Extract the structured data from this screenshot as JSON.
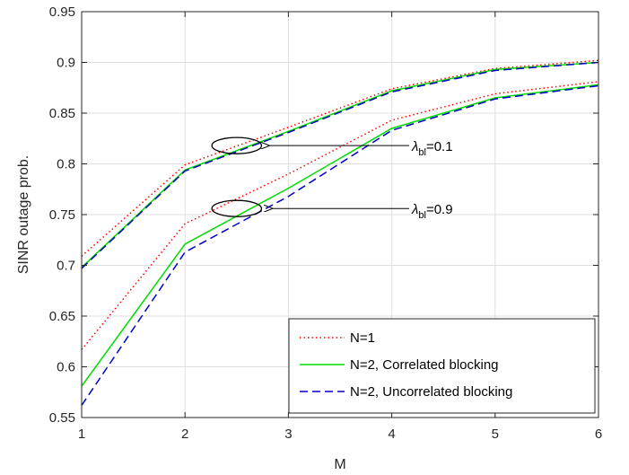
{
  "chart_data": {
    "type": "line",
    "xlabel": "M",
    "ylabel": "SINR outage prob.",
    "xlim": [
      1,
      6
    ],
    "ylim": [
      0.55,
      0.95
    ],
    "xticks": [
      1,
      2,
      3,
      4,
      5,
      6
    ],
    "xtick_labels": [
      "1",
      "2",
      "3",
      "4",
      "5",
      "6"
    ],
    "yticks": [
      0.55,
      0.6,
      0.65,
      0.7,
      0.75,
      0.8,
      0.85,
      0.9,
      0.95
    ],
    "ytick_labels": [
      "0.55",
      "0.6",
      "0.65",
      "0.7",
      "0.75",
      "0.8",
      "0.85",
      "0.9",
      "0.95"
    ],
    "grid": true,
    "legend_position": "bottom-right",
    "x": [
      1,
      2,
      3,
      4,
      5,
      6
    ],
    "series": [
      {
        "name": "N=1",
        "group": "lambda_bl=0.1",
        "color": "#ff0000",
        "dash": "dotted",
        "values": [
          0.709,
          0.799,
          0.836,
          0.874,
          0.894,
          0.902
        ]
      },
      {
        "name": "N=2, Correlated blocking",
        "group": "lambda_bl=0.1",
        "color": "#00dd00",
        "dash": "solid",
        "values": [
          0.698,
          0.794,
          0.832,
          0.872,
          0.893,
          0.9
        ]
      },
      {
        "name": "N=2, Uncorrelated blocking",
        "group": "lambda_bl=0.1",
        "color": "#0000cc",
        "dash": "dashed",
        "values": [
          0.697,
          0.793,
          0.831,
          0.871,
          0.892,
          0.9
        ]
      },
      {
        "name": "N=1",
        "group": "lambda_bl=0.9",
        "color": "#ff0000",
        "dash": "dotted",
        "values": [
          0.617,
          0.741,
          0.79,
          0.843,
          0.869,
          0.881
        ]
      },
      {
        "name": "N=2, Correlated blocking",
        "group": "lambda_bl=0.9",
        "color": "#00dd00",
        "dash": "solid",
        "values": [
          0.581,
          0.721,
          0.776,
          0.835,
          0.865,
          0.878
        ]
      },
      {
        "name": "N=2, Uncorrelated blocking",
        "group": "lambda_bl=0.9",
        "color": "#0000cc",
        "dash": "dashed",
        "values": [
          0.562,
          0.713,
          0.768,
          0.833,
          0.864,
          0.877
        ]
      }
    ],
    "legend": [
      {
        "label": "N=1",
        "color": "#ff0000",
        "dash": "dotted"
      },
      {
        "label": "N=2, Correlated blocking",
        "color": "#00dd00",
        "dash": "solid"
      },
      {
        "label": "N=2, Uncorrelated blocking",
        "color": "#0000cc",
        "dash": "dashed"
      }
    ],
    "annotations": [
      {
        "symbol": "λ",
        "sub": "bl",
        "rest": "=0.1",
        "ellipse_center": [
          2.5,
          0.818
        ],
        "ellipse_rx": 0.24,
        "ellipse_ry": 0.008,
        "arrow_to": [
          2.81,
          0.818
        ]
      },
      {
        "symbol": "λ",
        "sub": "bl",
        "rest": "=0.9",
        "ellipse_center": [
          2.5,
          0.756
        ],
        "ellipse_rx": 0.24,
        "ellipse_ry": 0.008,
        "arrow_to": [
          2.84,
          0.756
        ]
      }
    ]
  }
}
